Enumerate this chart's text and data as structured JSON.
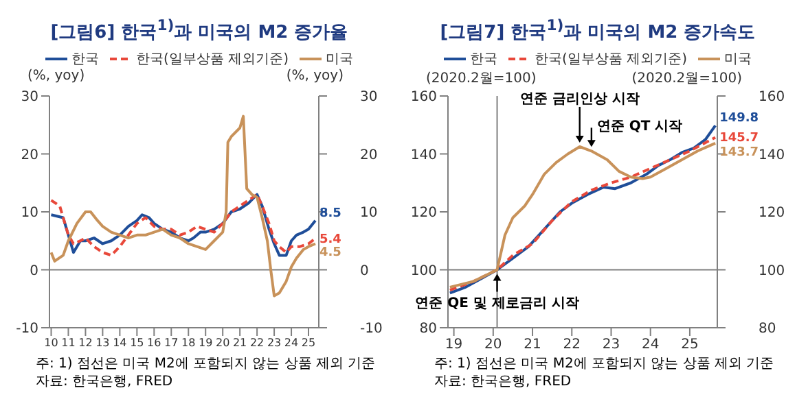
{
  "chart_data": [
    {
      "type": "line",
      "title": "[그림6] 한국$^{1)}$과 미국의 M2 증가율",
      "ylabel": "(%, yoy)",
      "y2label": "(%, yoy)",
      "legend": "top",
      "xlim": [
        2009.9,
        2025.6
      ],
      "xticks": [
        {
          "value": 2010,
          "label": "10"
        },
        {
          "value": 2011,
          "label": "11"
        },
        {
          "value": 2012,
          "label": "12"
        },
        {
          "value": 2013,
          "label": "13"
        },
        {
          "value": 2014,
          "label": "14"
        },
        {
          "value": 2015,
          "label": "15"
        },
        {
          "value": 2016,
          "label": "16"
        },
        {
          "value": 2017,
          "label": "17"
        },
        {
          "value": 2018,
          "label": "18"
        },
        {
          "value": 2019,
          "label": "19"
        },
        {
          "value": 2020,
          "label": "20"
        },
        {
          "value": 2021,
          "label": "21"
        },
        {
          "value": 2022,
          "label": "22"
        },
        {
          "value": 2023,
          "label": "23"
        },
        {
          "value": 2024,
          "label": "24"
        },
        {
          "value": 2025,
          "label": "25"
        }
      ],
      "ylim": [
        -10,
        30
      ],
      "yticks": [
        -10,
        0,
        10,
        20,
        30
      ],
      "y2lim": [
        -10,
        30
      ],
      "y2ticks": [
        -10,
        0,
        10,
        20,
        30
      ],
      "ref_lines": [
        {
          "axis": "y",
          "value": 0,
          "color": "#808080"
        }
      ],
      "series": [
        {
          "name": "한국",
          "color": "#1f4e99",
          "line_style": "solid",
          "x": [
            2010,
            2010.7,
            2011,
            2011.3,
            2011.7,
            2012,
            2012.5,
            2013,
            2013.5,
            2014,
            2014.5,
            2015,
            2015.3,
            2015.7,
            2016,
            2016.5,
            2017,
            2017.5,
            2018,
            2018.3,
            2018.7,
            2019,
            2019.5,
            2020,
            2020.5,
            2021,
            2021.5,
            2022,
            2022.3,
            2022.7,
            2023,
            2023.3,
            2023.7,
            2024,
            2024.3,
            2024.7,
            2025,
            2025.4
          ],
          "values": [
            9.5,
            9,
            6,
            3,
            5,
            5,
            5.5,
            4.5,
            5,
            6,
            7.5,
            8.5,
            9.5,
            9,
            8,
            7,
            6.5,
            5.5,
            5,
            5.5,
            6.5,
            6.5,
            7,
            8,
            10,
            10.5,
            11.5,
            13,
            11,
            7,
            4.5,
            2.5,
            2.5,
            5,
            6,
            6.5,
            7,
            8.5
          ],
          "value_labels": [
            null,
            null,
            null,
            null,
            null,
            null,
            null,
            null,
            null,
            null,
            null,
            null,
            null,
            null,
            null,
            null,
            null,
            null,
            null,
            null,
            null,
            null,
            null,
            null,
            null,
            null,
            null,
            null,
            null,
            null,
            null,
            null,
            null,
            null,
            null,
            null,
            null,
            "8.5"
          ]
        },
        {
          "name": "한국(일부상품 제외기준)",
          "color": "#e8483a",
          "line_style": "dashed",
          "x": [
            2010,
            2010.5,
            2011,
            2011.3,
            2011.7,
            2012,
            2012.5,
            2013,
            2013.5,
            2014,
            2014.5,
            2015,
            2015.5,
            2016,
            2016.5,
            2017,
            2017.5,
            2018,
            2018.5,
            2019,
            2019.5,
            2020,
            2020.5,
            2021,
            2021.5,
            2022,
            2022.3,
            2022.7,
            2023,
            2023.3,
            2023.7,
            2024,
            2024.5,
            2025,
            2025.4
          ],
          "values": [
            12,
            11,
            6,
            4.5,
            5,
            5.5,
            4,
            3,
            2.5,
            4,
            6,
            8,
            9,
            7.5,
            7,
            7,
            6,
            6.5,
            7.5,
            7,
            6.5,
            8,
            10,
            11,
            12,
            13,
            11,
            8,
            5,
            4,
            3,
            4,
            4,
            4.5,
            5.4
          ],
          "value_labels": [
            null,
            null,
            null,
            null,
            null,
            null,
            null,
            null,
            null,
            null,
            null,
            null,
            null,
            null,
            null,
            null,
            null,
            null,
            null,
            null,
            null,
            null,
            null,
            null,
            null,
            null,
            null,
            null,
            null,
            null,
            null,
            null,
            null,
            null,
            "5.4"
          ]
        },
        {
          "name": "미국",
          "color": "#c8925a",
          "line_style": "solid",
          "x": [
            2010,
            2010.2,
            2010.7,
            2011,
            2011.5,
            2012,
            2012.3,
            2012.7,
            2013,
            2013.5,
            2014,
            2014.5,
            2015,
            2015.5,
            2016,
            2016.5,
            2017,
            2017.5,
            2018,
            2018.5,
            2019,
            2019.5,
            2020,
            2020.2,
            2020.3,
            2020.5,
            2021,
            2021.2,
            2021.4,
            2021.7,
            2022,
            2022.3,
            2022.6,
            2022.8,
            2023,
            2023.3,
            2023.7,
            2024,
            2024.3,
            2024.7,
            2025,
            2025.4
          ],
          "values": [
            3,
            1.5,
            2.5,
            5,
            8,
            10,
            10,
            8.5,
            7.5,
            6.5,
            6,
            5.5,
            6,
            6,
            6.5,
            7,
            6,
            5.5,
            4.5,
            4,
            3.5,
            5,
            6.5,
            10,
            22,
            23,
            24.5,
            26.5,
            14,
            13,
            12.5,
            9,
            5,
            0,
            -4.5,
            -4,
            -2,
            0.5,
            2,
            3.5,
            4,
            4.5
          ],
          "value_labels": [
            null,
            null,
            null,
            null,
            null,
            null,
            null,
            null,
            null,
            null,
            null,
            null,
            null,
            null,
            null,
            null,
            null,
            null,
            null,
            null,
            null,
            null,
            null,
            null,
            null,
            null,
            null,
            null,
            null,
            null,
            null,
            null,
            null,
            null,
            null,
            null,
            null,
            null,
            null,
            null,
            null,
            "4.5"
          ]
        }
      ],
      "annotations": [
        "주: 1) 점선은 미국 M2에 포함되지 않는 상품 제외 기준",
        "자료: 한국은행, FRED"
      ]
    },
    {
      "type": "line",
      "title": "[그림7] 한국$^{1)}$과 미국의 M2 증가속도",
      "ylabel": "(2020.2월=100)",
      "y2label": "(2020.2월=100)",
      "legend": "top",
      "xlim": [
        2018.85,
        2025.7
      ],
      "xticks": [
        {
          "value": 2019,
          "label": "19"
        },
        {
          "value": 2020,
          "label": "20"
        },
        {
          "value": 2021,
          "label": "21"
        },
        {
          "value": 2022,
          "label": "22"
        },
        {
          "value": 2023,
          "label": "23"
        },
        {
          "value": 2024,
          "label": "24"
        },
        {
          "value": 2025,
          "label": "25"
        }
      ],
      "ylim": [
        80,
        160
      ],
      "yticks": [
        80,
        100,
        120,
        140,
        160
      ],
      "y2lim": [
        80,
        160
      ],
      "y2ticks": [
        80,
        100,
        120,
        140,
        160
      ],
      "ref_lines": [
        {
          "axis": "y",
          "value": 100,
          "color": "#808080"
        },
        {
          "axis": "x",
          "value": 2020.1,
          "color": "#808080"
        }
      ],
      "series": [
        {
          "name": "한국",
          "color": "#1f4e99",
          "line_style": "solid",
          "x": [
            2018.9,
            2019.3,
            2019.7,
            2020.1,
            2020.5,
            2020.9,
            2021.3,
            2021.7,
            2022,
            2022.4,
            2022.8,
            2023.1,
            2023.5,
            2023.9,
            2024.2,
            2024.5,
            2024.8,
            2025.1,
            2025.4,
            2025.65
          ],
          "values": [
            92,
            94,
            97,
            100,
            104,
            108,
            114,
            120,
            123,
            126,
            128.5,
            128,
            130,
            133,
            136,
            138,
            140.5,
            142,
            145,
            149.8
          ],
          "value_labels": [
            null,
            null,
            null,
            null,
            null,
            null,
            null,
            null,
            null,
            null,
            null,
            null,
            null,
            null,
            null,
            null,
            null,
            null,
            null,
            "149.8"
          ]
        },
        {
          "name": "한국(일부상품 제외기준)",
          "color": "#e8483a",
          "line_style": "dashed",
          "x": [
            2018.9,
            2019.5,
            2020.1,
            2020.5,
            2021,
            2021.5,
            2022,
            2022.5,
            2023,
            2023.5,
            2024,
            2024.5,
            2025,
            2025.65
          ],
          "values": [
            93,
            96,
            100,
            105,
            109,
            117,
            123.5,
            127.5,
            130,
            132,
            135,
            138,
            141,
            145.7
          ],
          "value_labels": [
            null,
            null,
            null,
            null,
            null,
            null,
            null,
            null,
            null,
            null,
            null,
            null,
            null,
            "145.7"
          ]
        },
        {
          "name": "미국",
          "color": "#c8925a",
          "line_style": "solid",
          "x": [
            2018.9,
            2019.5,
            2020.1,
            2020.3,
            2020.5,
            2020.8,
            2021,
            2021.3,
            2021.6,
            2021.9,
            2022.2,
            2022.5,
            2022.9,
            2023.2,
            2023.5,
            2023.8,
            2024,
            2024.4,
            2024.8,
            2025.2,
            2025.65
          ],
          "values": [
            94,
            96,
            100,
            112,
            118,
            122,
            126,
            133,
            137,
            140,
            142.5,
            141,
            138,
            134,
            132,
            131.5,
            132,
            135,
            138,
            141,
            143.7
          ],
          "value_labels": [
            null,
            null,
            null,
            null,
            null,
            null,
            null,
            null,
            null,
            null,
            null,
            null,
            null,
            null,
            null,
            null,
            null,
            null,
            null,
            null,
            "143.7"
          ]
        }
      ],
      "annotations": [
        {
          "text": "연준 금리인상 시작",
          "x": 2022.2,
          "y": 142.5
        },
        {
          "text": "연준 QT 시작",
          "x": 2022.5,
          "y": 141
        },
        {
          "text": "연준 QE 및 제로금리 시작",
          "x": 2020.1,
          "y": 100
        },
        "주: 1) 점선은 미국 M2에 포함되지 않는 상품 제외 기준",
        "자료: 한국은행, FRED"
      ]
    }
  ]
}
